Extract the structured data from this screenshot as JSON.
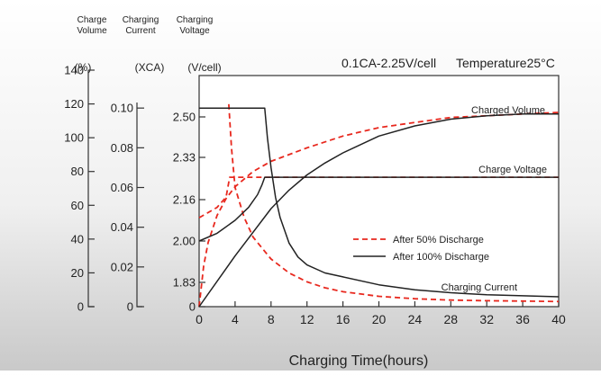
{
  "chart_data": {
    "type": "line",
    "title": "0.1CA-2.25V/cell",
    "temperature": "Temperature25°C",
    "xlabel": "Charging Time(hours)",
    "xlim": [
      0,
      40
    ],
    "x_ticks": [
      "0",
      "4",
      "8",
      "12",
      "16",
      "20",
      "24",
      "28",
      "32",
      "36",
      "40"
    ],
    "axes": {
      "volume": {
        "header": [
          "Charge",
          "Volume"
        ],
        "unit": "(%)",
        "range": [
          0,
          140
        ],
        "ticks": [
          "0",
          "20",
          "40",
          "60",
          "80",
          "100",
          "120",
          "140"
        ]
      },
      "current": {
        "header": [
          "Charging",
          "Current"
        ],
        "unit": "(XCA)",
        "range": [
          0,
          0.12
        ],
        "ticks": [
          "0",
          "0.02",
          "0.04",
          "0.06",
          "0.08",
          "0.10"
        ]
      },
      "voltage": {
        "header": [
          "Charging",
          "Voltage"
        ],
        "unit": "(V/cell)",
        "ticks": [
          "0",
          "1.83",
          "2.00",
          "2.16",
          "2.33",
          "2.50"
        ]
      }
    },
    "colors": {
      "after_50": "#e8281e",
      "after_100": "#222222"
    },
    "legend": {
      "placement": "inside-center-right",
      "items": [
        "After 50% Discharge",
        "After 100% Discharge"
      ]
    },
    "curve_labels": [
      "Charged Volume",
      "Charge Voltage",
      "Charging Current"
    ],
    "series": [
      {
        "name": "After 50% Discharge",
        "curve": "Charged Volume",
        "axis": "volume",
        "style": "dashed",
        "x": [
          0,
          0.5,
          1,
          2,
          3,
          4,
          6,
          8,
          10,
          12,
          16,
          20,
          24,
          28,
          32,
          36,
          40
        ],
        "y": [
          0,
          24,
          38,
          54,
          64,
          71,
          80,
          86,
          90,
          94,
          101,
          106,
          109,
          112,
          113,
          114,
          115
        ]
      },
      {
        "name": "After 50% Discharge",
        "curve": "Charge Voltage",
        "axis": "voltage",
        "style": "dashed",
        "x": [
          0,
          1,
          2,
          3,
          3.4,
          4,
          8,
          12,
          20,
          30,
          40
        ],
        "y": [
          2.09,
          2.11,
          2.13,
          2.17,
          2.25,
          2.25,
          2.25,
          2.25,
          2.25,
          2.25,
          2.25
        ]
      },
      {
        "name": "After 50% Discharge",
        "curve": "Charging Current",
        "axis": "current",
        "style": "dashed",
        "x": [
          3.3,
          3.6,
          4,
          5,
          6,
          8,
          10,
          12,
          14,
          16,
          20,
          24,
          28,
          32,
          36,
          40
        ],
        "y": [
          0.102,
          0.08,
          0.06,
          0.045,
          0.035,
          0.024,
          0.017,
          0.0125,
          0.0095,
          0.0075,
          0.0052,
          0.004,
          0.0033,
          0.003,
          0.0028,
          0.0026
        ]
      },
      {
        "name": "After 100% Discharge",
        "curve": "Charged Volume",
        "axis": "volume",
        "style": "solid",
        "x": [
          0,
          4,
          8,
          10,
          12,
          14,
          16,
          20,
          24,
          28,
          32,
          36,
          40
        ],
        "y": [
          0,
          30,
          58,
          69,
          78,
          85,
          91,
          101,
          107,
          111,
          113,
          114,
          114
        ]
      },
      {
        "name": "After 100% Discharge",
        "curve": "Charge Voltage",
        "axis": "voltage",
        "style": "solid",
        "x": [
          0,
          2,
          4,
          5.5,
          6.5,
          7,
          7.3,
          8,
          12,
          20,
          30,
          40
        ],
        "y": [
          2.0,
          2.03,
          2.08,
          2.13,
          2.18,
          2.22,
          2.25,
          2.25,
          2.25,
          2.25,
          2.25,
          2.25
        ]
      },
      {
        "name": "After 100% Discharge",
        "curve": "Charging Current",
        "axis": "current",
        "style": "solid",
        "x": [
          0,
          7.3,
          7.6,
          8,
          8.5,
          9,
          10,
          11,
          12,
          14,
          16,
          20,
          24,
          28,
          32,
          36,
          40
        ],
        "y": [
          0.1,
          0.1,
          0.085,
          0.07,
          0.055,
          0.045,
          0.032,
          0.025,
          0.021,
          0.017,
          0.015,
          0.011,
          0.0085,
          0.007,
          0.006,
          0.0055,
          0.005
        ]
      }
    ]
  }
}
